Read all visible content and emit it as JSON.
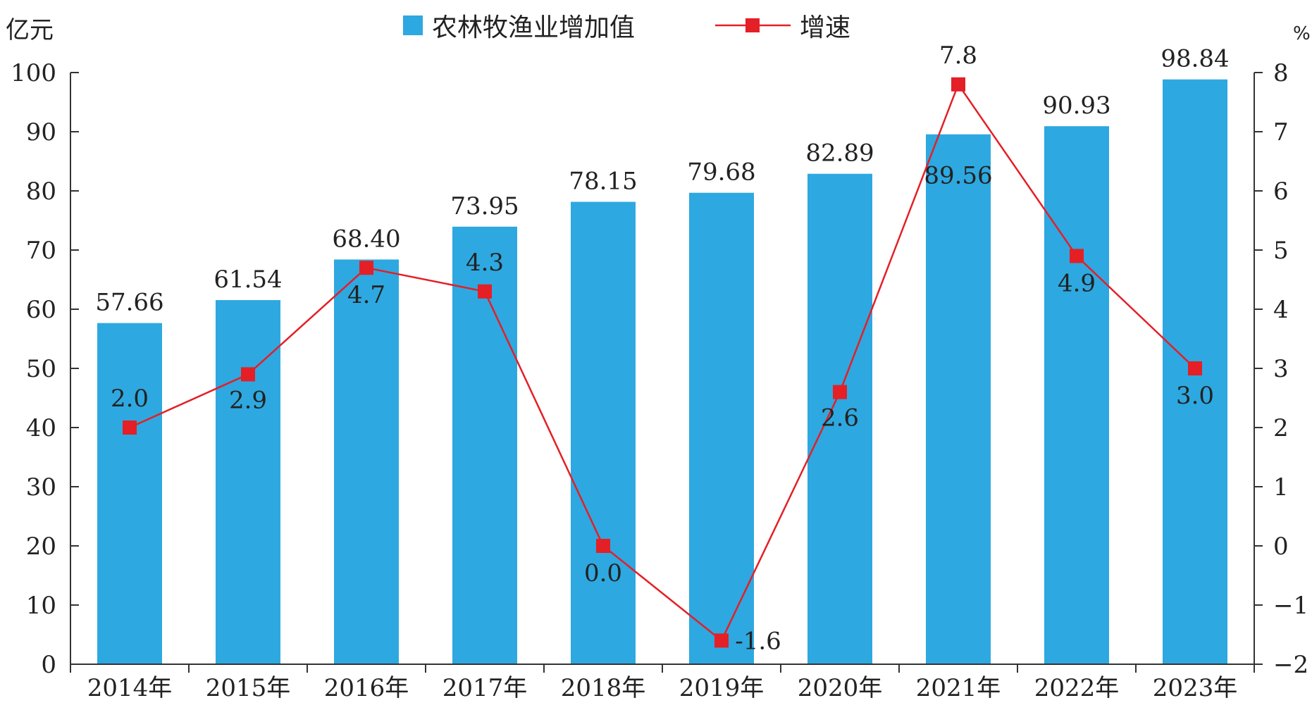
{
  "chart_data": {
    "type": "bar",
    "categories": [
      "2014年",
      "2015年",
      "2016年",
      "2017年",
      "2018年",
      "2019年",
      "2020年",
      "2021年",
      "2022年",
      "2023年"
    ],
    "series": [
      {
        "name": "农林牧渔业增加值",
        "type": "bar",
        "axis": "left",
        "color": "#2ea8e0",
        "values": [
          57.66,
          61.54,
          68.4,
          73.95,
          78.15,
          79.68,
          82.89,
          89.56,
          90.93,
          98.84
        ],
        "labels": [
          "57.66",
          "61.54",
          "68.40",
          "73.95",
          "78.15",
          "79.68",
          "82.89",
          "89.56",
          "90.93",
          "98.84"
        ]
      },
      {
        "name": "增速",
        "type": "line",
        "axis": "right",
        "color": "#e41f26",
        "values": [
          2.0,
          2.9,
          4.7,
          4.3,
          0.0,
          -1.6,
          2.6,
          7.8,
          4.9,
          3.0
        ],
        "labels": [
          "2.0",
          "2.9",
          "4.7",
          "4.3",
          "0.0",
          "-1.6",
          "2.6",
          "7.8",
          "4.9",
          "3.0"
        ]
      }
    ],
    "left_axis": {
      "unit": "亿元",
      "ylim": [
        0,
        100
      ],
      "ticks": [
        0,
        10,
        20,
        30,
        40,
        50,
        60,
        70,
        80,
        90,
        100
      ],
      "tick_labels": [
        "0",
        "10",
        "20",
        "30",
        "40",
        "50",
        "60",
        "70",
        "80",
        "90",
        "100"
      ]
    },
    "right_axis": {
      "unit": "%",
      "ylim": [
        -2,
        8
      ],
      "ticks": [
        -2,
        -1,
        0,
        1,
        2,
        3,
        4,
        5,
        6,
        7,
        8
      ],
      "tick_labels": [
        "−2",
        "−1",
        "0",
        "1",
        "2",
        "3",
        "4",
        "5",
        "6",
        "7",
        "8"
      ]
    },
    "legend": {
      "position": "top",
      "entries": [
        {
          "label": "农林牧渔业增加值",
          "marker": "square",
          "color": "#2ea8e0"
        },
        {
          "label": "增速",
          "marker": "line-square",
          "color": "#e41f26"
        }
      ]
    },
    "grid": false,
    "title": "",
    "xlabel": ""
  }
}
